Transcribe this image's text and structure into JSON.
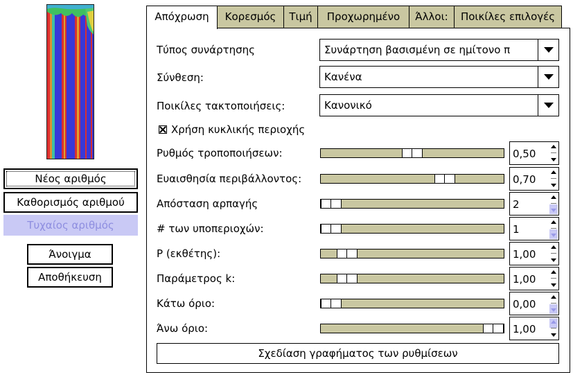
{
  "left": {
    "buttons": {
      "new_number": "Νέος αριθμός",
      "set_number": "Καθορισμός αριθμού",
      "random_number": "Τυχαίος αριθμός",
      "open": "Άνοιγμα",
      "save": "Αποθήκευση"
    }
  },
  "tabs": [
    "Απόχρωση",
    "Κορεσμός",
    "Τιμή",
    "Προχωρημένο",
    "Άλλοι:",
    "Ποικίλες επιλογές"
  ],
  "active_tab": "Απόχρωση",
  "panel": {
    "function_type": {
      "label": "Τύπος συνάρτησης",
      "value": "Συνάρτηση βασισμένη σε ημίτονο π"
    },
    "composition": {
      "label": "Σύνθεση:",
      "value": "Κανένα"
    },
    "misc_order": {
      "label": "Ποικίλες τακτοποιήσεις:",
      "value": "Κανονικό"
    },
    "cyclic": {
      "label": "Χρήση κυκλικής περιοχής",
      "checked": true
    },
    "sliders": [
      {
        "label": "Ρυθμός τροποποιήσεων:",
        "value": "0,50",
        "fraction": 0.5
      },
      {
        "label": "Ευαισθησία περιβάλλοντος:",
        "value": "0,70",
        "fraction": 0.7
      },
      {
        "label": "Απόσταση αρπαγής",
        "value": "2",
        "fraction": 0.0
      },
      {
        "label": "# των υποπεριοχών:",
        "value": "1",
        "fraction": 0.0
      },
      {
        "label": "P (εκθέτης):",
        "value": "1,00",
        "fraction": 0.1
      },
      {
        "label": "Παράμετρος k:",
        "value": "1,00",
        "fraction": 0.1
      },
      {
        "label": "Κάτω όριο:",
        "value": "0,00",
        "fraction": 0.0
      },
      {
        "label": "Άνω όριο:",
        "value": "1,00",
        "fraction": 1.0
      }
    ],
    "plot_button": "Σχεδίαση γραφήματος των ρυθμίσεων"
  },
  "colors": {
    "tab_inactive": "#c9c7a1",
    "slider_track": "#c9c7a1",
    "disabled": "#c9c9f5"
  }
}
